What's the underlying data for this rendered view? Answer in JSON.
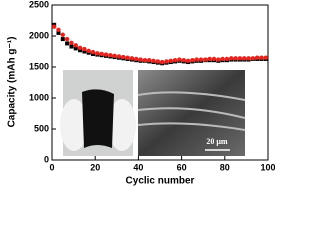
{
  "chart_data": {
    "type": "scatter",
    "xlabel": "Cyclic number",
    "ylabel": "Capacity (mAh g⁻¹)",
    "x": [
      1,
      3,
      5,
      7,
      9,
      11,
      13,
      15,
      17,
      19,
      21,
      23,
      25,
      27,
      29,
      31,
      33,
      35,
      37,
      39,
      41,
      43,
      45,
      47,
      49,
      51,
      53,
      55,
      57,
      59,
      61,
      63,
      65,
      67,
      69,
      71,
      73,
      75,
      77,
      79,
      81,
      83,
      85,
      87,
      89,
      91,
      93,
      95,
      97,
      99
    ],
    "series": [
      {
        "color": "#000000",
        "marker": "square",
        "values": [
          2180,
          2050,
          1950,
          1880,
          1830,
          1800,
          1770,
          1750,
          1730,
          1710,
          1700,
          1690,
          1680,
          1670,
          1660,
          1650,
          1640,
          1630,
          1620,
          1610,
          1600,
          1600,
          1590,
          1580,
          1570,
          1560,
          1570,
          1580,
          1590,
          1600,
          1590,
          1580,
          1590,
          1600,
          1600,
          1610,
          1610,
          1610,
          1600,
          1610,
          1610,
          1620,
          1620,
          1620,
          1620,
          1620,
          1630,
          1630,
          1630,
          1630
        ]
      },
      {
        "color": "#e8231d",
        "marker": "circle",
        "values": [
          2150,
          2100,
          2020,
          1950,
          1890,
          1850,
          1810,
          1790,
          1760,
          1740,
          1720,
          1710,
          1700,
          1690,
          1680,
          1670,
          1660,
          1650,
          1640,
          1630,
          1620,
          1610,
          1610,
          1600,
          1590,
          1580,
          1590,
          1600,
          1610,
          1620,
          1610,
          1600,
          1610,
          1620,
          1620,
          1620,
          1630,
          1630,
          1620,
          1630,
          1630,
          1640,
          1640,
          1640,
          1640,
          1640,
          1640,
          1650,
          1650,
          1650
        ]
      }
    ],
    "xlim": [
      0,
      100
    ],
    "xticks": [
      0,
      20,
      40,
      60,
      80,
      100
    ],
    "ylim": [
      0,
      2500
    ],
    "yticks": [
      0,
      500,
      1000,
      1500,
      2000,
      2500
    ],
    "inset_annotation": "20 μm"
  }
}
